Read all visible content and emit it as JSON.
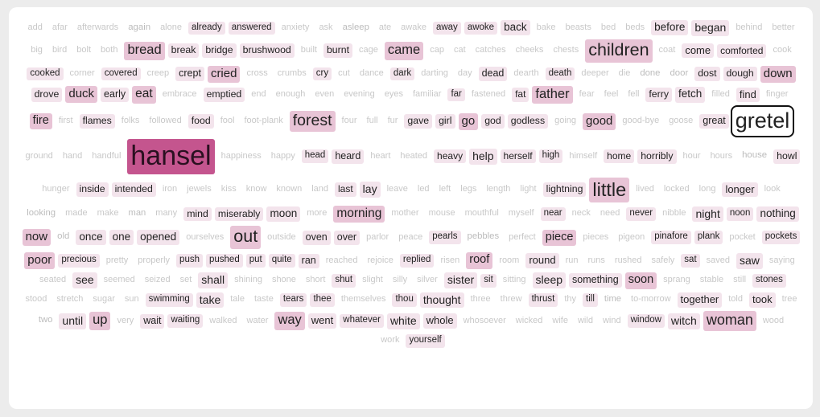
{
  "words": [
    {
      "text": "add",
      "w": 0
    },
    {
      "text": "afar",
      "w": 0
    },
    {
      "text": "afterwards",
      "w": 0
    },
    {
      "text": "again",
      "w": 0.3
    },
    {
      "text": "alone",
      "w": 0
    },
    {
      "text": "already",
      "w": 1
    },
    {
      "text": "answered",
      "w": 1
    },
    {
      "text": "anxiety",
      "w": 0
    },
    {
      "text": "ask",
      "w": 0
    },
    {
      "text": "asleep",
      "w": 0.2
    },
    {
      "text": "ate",
      "w": 0
    },
    {
      "text": "awake",
      "w": 0
    },
    {
      "text": "away",
      "w": 1
    },
    {
      "text": "awoke",
      "w": 1
    },
    {
      "text": "back",
      "w": 1.4
    },
    {
      "text": "bake",
      "w": 0
    },
    {
      "text": "beasts",
      "w": 0
    },
    {
      "text": "bed",
      "w": 0
    },
    {
      "text": "beds",
      "w": 0
    },
    {
      "text": "before",
      "w": 1.4
    },
    {
      "text": "began",
      "w": 1.5
    },
    {
      "text": "behind",
      "w": 0
    },
    {
      "text": "better",
      "w": 0
    },
    {
      "text": "big",
      "w": 0
    },
    {
      "text": "bird",
      "w": 0
    },
    {
      "text": "bolt",
      "w": 0
    },
    {
      "text": "both",
      "w": 0
    },
    {
      "text": "bread",
      "w": 2
    },
    {
      "text": "break",
      "w": 0.9
    },
    {
      "text": "bridge",
      "w": 0.9
    },
    {
      "text": "brushwood",
      "w": 0.9
    },
    {
      "text": "built",
      "w": 0
    },
    {
      "text": "burnt",
      "w": 0.9
    },
    {
      "text": "cage",
      "w": 0
    },
    {
      "text": "came",
      "w": 2
    },
    {
      "text": "cap",
      "w": 0
    },
    {
      "text": "cat",
      "w": 0
    },
    {
      "text": "catches",
      "w": 0
    },
    {
      "text": "cheeks",
      "w": 0
    },
    {
      "text": "chests",
      "w": 0
    },
    {
      "text": "children",
      "w": 3
    },
    {
      "text": "coat",
      "w": 0
    },
    {
      "text": "come",
      "w": 1.3
    },
    {
      "text": "comforted",
      "w": 1.1
    },
    {
      "text": "cook",
      "w": 0
    },
    {
      "text": "cooked",
      "w": 1
    },
    {
      "text": "corner",
      "w": 0
    },
    {
      "text": "covered",
      "w": 1
    },
    {
      "text": "creep",
      "w": 0
    },
    {
      "text": "crept",
      "w": 1.2
    },
    {
      "text": "cried",
      "w": 1.7
    },
    {
      "text": "cross",
      "w": 0
    },
    {
      "text": "crumbs",
      "w": 0
    },
    {
      "text": "cry",
      "w": 1
    },
    {
      "text": "cut",
      "w": 0
    },
    {
      "text": "dance",
      "w": 0
    },
    {
      "text": "dark",
      "w": 1
    },
    {
      "text": "darting",
      "w": 0
    },
    {
      "text": "day",
      "w": 0
    },
    {
      "text": "dead",
      "w": 1.2
    },
    {
      "text": "dearth",
      "w": 0
    },
    {
      "text": "death",
      "w": 1
    },
    {
      "text": "deeper",
      "w": 0
    },
    {
      "text": "die",
      "w": 0
    },
    {
      "text": "done",
      "w": 0.2
    },
    {
      "text": "door",
      "w": 0.3
    },
    {
      "text": "dost",
      "w": 0.9
    },
    {
      "text": "dough",
      "w": 0.9
    },
    {
      "text": "down",
      "w": 1.7
    },
    {
      "text": "drove",
      "w": 0.9
    },
    {
      "text": "duck",
      "w": 1.7
    },
    {
      "text": "early",
      "w": 1.2
    },
    {
      "text": "eat",
      "w": 1.8
    },
    {
      "text": "embrace",
      "w": 0
    },
    {
      "text": "emptied",
      "w": 0.9
    },
    {
      "text": "end",
      "w": 0
    },
    {
      "text": "enough",
      "w": 0
    },
    {
      "text": "even",
      "w": 0
    },
    {
      "text": "evening",
      "w": 0
    },
    {
      "text": "eyes",
      "w": 0
    },
    {
      "text": "familiar",
      "w": 0
    },
    {
      "text": "far",
      "w": 1
    },
    {
      "text": "fastened",
      "w": 0
    },
    {
      "text": "fat",
      "w": 1.1
    },
    {
      "text": "father",
      "w": 2
    },
    {
      "text": "fear",
      "w": 0
    },
    {
      "text": "feel",
      "w": 0
    },
    {
      "text": "fell",
      "w": 0
    },
    {
      "text": "ferry",
      "w": 0.9
    },
    {
      "text": "fetch",
      "w": 1.4
    },
    {
      "text": "filled",
      "w": 0
    },
    {
      "text": "find",
      "w": 1.3
    },
    {
      "text": "finger",
      "w": 0
    },
    {
      "text": "fire",
      "w": 1.6
    },
    {
      "text": "first",
      "w": 0
    },
    {
      "text": "flames",
      "w": 0.9
    },
    {
      "text": "folks",
      "w": 0
    },
    {
      "text": "followed",
      "w": 0
    },
    {
      "text": "food",
      "w": 0.9
    },
    {
      "text": "fool",
      "w": 0
    },
    {
      "text": "foot-plank",
      "w": 0
    },
    {
      "text": "forest",
      "w": 2.6
    },
    {
      "text": "four",
      "w": 0
    },
    {
      "text": "full",
      "w": 0
    },
    {
      "text": "fur",
      "w": 0
    },
    {
      "text": "gave",
      "w": 0.9
    },
    {
      "text": "girl",
      "w": 0.9
    },
    {
      "text": "go",
      "w": 1.7
    },
    {
      "text": "god",
      "w": 0.9
    },
    {
      "text": "godless",
      "w": 0.9
    },
    {
      "text": "going",
      "w": 0
    },
    {
      "text": "good",
      "w": 1.7
    },
    {
      "text": "good-bye",
      "w": 0
    },
    {
      "text": "goose",
      "w": 0
    },
    {
      "text": "great",
      "w": 1.2
    },
    {
      "text": "gretel",
      "w": 4
    },
    {
      "text": "ground",
      "w": 0
    },
    {
      "text": "hand",
      "w": 0
    },
    {
      "text": "handful",
      "w": 0
    },
    {
      "text": "hansel",
      "w": 5
    },
    {
      "text": "happiness",
      "w": 0
    },
    {
      "text": "happy",
      "w": 0
    },
    {
      "text": "head",
      "w": 1
    },
    {
      "text": "heard",
      "w": 1.2
    },
    {
      "text": "heart",
      "w": 0
    },
    {
      "text": "heated",
      "w": 0
    },
    {
      "text": "heavy",
      "w": 1.1
    },
    {
      "text": "help",
      "w": 1.5
    },
    {
      "text": "herself",
      "w": 1.1
    },
    {
      "text": "high",
      "w": 1
    },
    {
      "text": "himself",
      "w": 0
    },
    {
      "text": "home",
      "w": 1.1
    },
    {
      "text": "horribly",
      "w": 0.9
    },
    {
      "text": "hour",
      "w": 0
    },
    {
      "text": "hours",
      "w": 0
    },
    {
      "text": "house",
      "w": 0.3
    },
    {
      "text": "howl",
      "w": 0.9
    },
    {
      "text": "hunger",
      "w": 0
    },
    {
      "text": "inside",
      "w": 0.9
    },
    {
      "text": "intended",
      "w": 0.9
    },
    {
      "text": "iron",
      "w": 0
    },
    {
      "text": "jewels",
      "w": 0
    },
    {
      "text": "kiss",
      "w": 0
    },
    {
      "text": "know",
      "w": 0
    },
    {
      "text": "known",
      "w": 0
    },
    {
      "text": "land",
      "w": 0
    },
    {
      "text": "last",
      "w": 1.1
    },
    {
      "text": "lay",
      "w": 1.5
    },
    {
      "text": "leave",
      "w": 0
    },
    {
      "text": "led",
      "w": 0
    },
    {
      "text": "left",
      "w": 0
    },
    {
      "text": "legs",
      "w": 0
    },
    {
      "text": "length",
      "w": 0
    },
    {
      "text": "light",
      "w": 0
    },
    {
      "text": "lightning",
      "w": 0.9
    },
    {
      "text": "little",
      "w": 3.4
    },
    {
      "text": "lived",
      "w": 0
    },
    {
      "text": "locked",
      "w": 0
    },
    {
      "text": "long",
      "w": 0
    },
    {
      "text": "longer",
      "w": 1.3
    },
    {
      "text": "look",
      "w": 0
    },
    {
      "text": "looking",
      "w": 0.2
    },
    {
      "text": "made",
      "w": 0
    },
    {
      "text": "make",
      "w": 0
    },
    {
      "text": "man",
      "w": 0.1
    },
    {
      "text": "many",
      "w": 0
    },
    {
      "text": "mind",
      "w": 0.9
    },
    {
      "text": "miserably",
      "w": 0.9
    },
    {
      "text": "moon",
      "w": 1.4
    },
    {
      "text": "more",
      "w": 0
    },
    {
      "text": "morning",
      "w": 1.8
    },
    {
      "text": "mother",
      "w": 0
    },
    {
      "text": "mouse",
      "w": 0
    },
    {
      "text": "mouthful",
      "w": 0
    },
    {
      "text": "myself",
      "w": 0
    },
    {
      "text": "near",
      "w": 1
    },
    {
      "text": "neck",
      "w": 0
    },
    {
      "text": "need",
      "w": 0
    },
    {
      "text": "never",
      "w": 1
    },
    {
      "text": "nibble",
      "w": 0
    },
    {
      "text": "night",
      "w": 1.5
    },
    {
      "text": "noon",
      "w": 1
    },
    {
      "text": "nothing",
      "w": 1.4
    },
    {
      "text": "now",
      "w": 1.7
    },
    {
      "text": "old",
      "w": 0.3
    },
    {
      "text": "once",
      "w": 1.4
    },
    {
      "text": "one",
      "w": 1.4
    },
    {
      "text": "opened",
      "w": 1.4
    },
    {
      "text": "ourselves",
      "w": 0
    },
    {
      "text": "out",
      "w": 3
    },
    {
      "text": "outside",
      "w": 0
    },
    {
      "text": "oven",
      "w": 1.2
    },
    {
      "text": "over",
      "w": 1.2
    },
    {
      "text": "parlor",
      "w": 0
    },
    {
      "text": "peace",
      "w": 0
    },
    {
      "text": "pearls",
      "w": 1
    },
    {
      "text": "pebbles",
      "w": 0.2
    },
    {
      "text": "perfect",
      "w": 0
    },
    {
      "text": "piece",
      "w": 1.6
    },
    {
      "text": "pieces",
      "w": 0
    },
    {
      "text": "pigeon",
      "w": 0
    },
    {
      "text": "pinafore",
      "w": 1
    },
    {
      "text": "plank",
      "w": 1
    },
    {
      "text": "pocket",
      "w": 0
    },
    {
      "text": "pockets",
      "w": 1
    },
    {
      "text": "poor",
      "w": 1.7
    },
    {
      "text": "precious",
      "w": 1
    },
    {
      "text": "pretty",
      "w": 0
    },
    {
      "text": "properly",
      "w": 0
    },
    {
      "text": "push",
      "w": 1
    },
    {
      "text": "pushed",
      "w": 1
    },
    {
      "text": "put",
      "w": 1
    },
    {
      "text": "quite",
      "w": 1
    },
    {
      "text": "ran",
      "w": 1.2
    },
    {
      "text": "reached",
      "w": 0
    },
    {
      "text": "rejoice",
      "w": 0
    },
    {
      "text": "replied",
      "w": 1
    },
    {
      "text": "risen",
      "w": 0
    },
    {
      "text": "roof",
      "w": 1.6
    },
    {
      "text": "room",
      "w": 0
    },
    {
      "text": "round",
      "w": 1.3
    },
    {
      "text": "run",
      "w": 0
    },
    {
      "text": "runs",
      "w": 0
    },
    {
      "text": "rushed",
      "w": 0
    },
    {
      "text": "safely",
      "w": 0
    },
    {
      "text": "sat",
      "w": 1
    },
    {
      "text": "saved",
      "w": 0
    },
    {
      "text": "saw",
      "w": 1.5
    },
    {
      "text": "saying",
      "w": 0
    },
    {
      "text": "seated",
      "w": 0
    },
    {
      "text": "see",
      "w": 1.5
    },
    {
      "text": "seemed",
      "w": 0
    },
    {
      "text": "seized",
      "w": 0
    },
    {
      "text": "set",
      "w": 0
    },
    {
      "text": "shall",
      "w": 1.5
    },
    {
      "text": "shining",
      "w": 0
    },
    {
      "text": "shone",
      "w": 0
    },
    {
      "text": "short",
      "w": 0
    },
    {
      "text": "shut",
      "w": 1
    },
    {
      "text": "slight",
      "w": 0
    },
    {
      "text": "silly",
      "w": 0
    },
    {
      "text": "silver",
      "w": 0
    },
    {
      "text": "sister",
      "w": 1.5
    },
    {
      "text": "sit",
      "w": 1
    },
    {
      "text": "sitting",
      "w": 0
    },
    {
      "text": "sleep",
      "w": 1.5
    },
    {
      "text": "something",
      "w": 1.2
    },
    {
      "text": "soon",
      "w": 1.6
    },
    {
      "text": "sprang",
      "w": 0
    },
    {
      "text": "stable",
      "w": 0
    },
    {
      "text": "still",
      "w": 0
    },
    {
      "text": "stones",
      "w": 1
    },
    {
      "text": "stood",
      "w": 0
    },
    {
      "text": "stretch",
      "w": 0
    },
    {
      "text": "sugar",
      "w": 0
    },
    {
      "text": "sun",
      "w": 0
    },
    {
      "text": "swimming",
      "w": 1
    },
    {
      "text": "take",
      "w": 1.5
    },
    {
      "text": "tale",
      "w": 0
    },
    {
      "text": "taste",
      "w": 0
    },
    {
      "text": "tears",
      "w": 1
    },
    {
      "text": "thee",
      "w": 1
    },
    {
      "text": "themselves",
      "w": 0
    },
    {
      "text": "thou",
      "w": 1
    },
    {
      "text": "thought",
      "w": 1.5
    },
    {
      "text": "three",
      "w": 0
    },
    {
      "text": "threw",
      "w": 0
    },
    {
      "text": "thrust",
      "w": 1
    },
    {
      "text": "thy",
      "w": 0
    },
    {
      "text": "till",
      "w": 1
    },
    {
      "text": "time",
      "w": 0.1
    },
    {
      "text": "to-morrow",
      "w": 0
    },
    {
      "text": "together",
      "w": 1.3
    },
    {
      "text": "told",
      "w": 0
    },
    {
      "text": "took",
      "w": 1.3
    },
    {
      "text": "tree",
      "w": 0
    },
    {
      "text": "two",
      "w": 0.2
    },
    {
      "text": "until",
      "w": 1.5
    },
    {
      "text": "up",
      "w": 2
    },
    {
      "text": "very",
      "w": 0
    },
    {
      "text": "wait",
      "w": 1.2
    },
    {
      "text": "waiting",
      "w": 1
    },
    {
      "text": "walked",
      "w": 0
    },
    {
      "text": "water",
      "w": 0
    },
    {
      "text": "way",
      "w": 2
    },
    {
      "text": "went",
      "w": 1.3
    },
    {
      "text": "whatever",
      "w": 1
    },
    {
      "text": "white",
      "w": 1.5
    },
    {
      "text": "whole",
      "w": 1.3
    },
    {
      "text": "whosoever",
      "w": 0
    },
    {
      "text": "wicked",
      "w": 0
    },
    {
      "text": "wife",
      "w": 0
    },
    {
      "text": "wild",
      "w": 0
    },
    {
      "text": "wind",
      "w": 0
    },
    {
      "text": "window",
      "w": 1
    },
    {
      "text": "witch",
      "w": 1.5
    },
    {
      "text": "woman",
      "w": 2.3
    },
    {
      "text": "wood",
      "w": 0
    },
    {
      "text": "work",
      "w": 0
    },
    {
      "text": "yourself",
      "w": 1
    }
  ],
  "selected_word": "gretel",
  "colors": {
    "page_bg": "#ececec",
    "panel_bg": "#ffffff",
    "tag_light": "#f3e4ec",
    "tag_mid": "#e8c4d6",
    "tag_strong": "#c4558e",
    "text_faint": "#c8c8c8",
    "text_dark": "#222222",
    "text_on_strong": "#2a1020"
  }
}
